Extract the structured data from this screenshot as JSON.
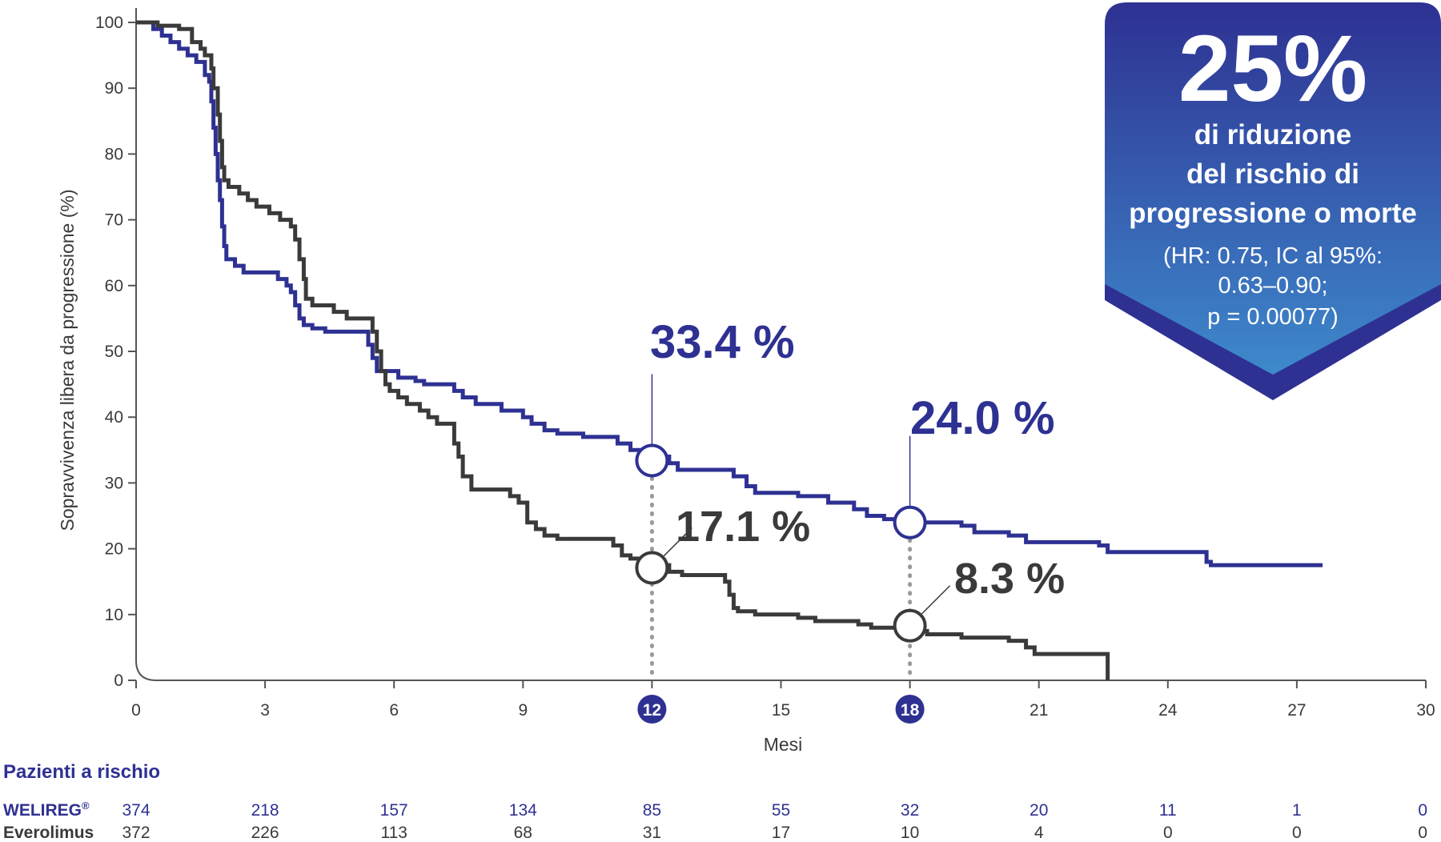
{
  "chart_data": {
    "type": "line",
    "subtype": "kaplan-meier",
    "xlabel": "Mesi",
    "ylabel": "Sopravvivenza libera da progressione (%)",
    "xlim": [
      0,
      30
    ],
    "ylim": [
      0,
      100
    ],
    "xticks": [
      "0",
      "3",
      "6",
      "9",
      "12",
      "15",
      "18",
      "21",
      "24",
      "27",
      "30"
    ],
    "yticks": [
      "0",
      "10",
      "20",
      "30",
      "40",
      "50",
      "60",
      "70",
      "80",
      "90",
      "100"
    ],
    "highlighted_xticks": [
      "12",
      "18"
    ],
    "grid": false,
    "series": [
      {
        "name": "WELIREG®",
        "color": "#2e3192",
        "steps": [
          [
            0,
            100
          ],
          [
            0.4,
            99
          ],
          [
            0.6,
            98
          ],
          [
            0.8,
            97
          ],
          [
            1.0,
            96
          ],
          [
            1.2,
            95
          ],
          [
            1.4,
            94
          ],
          [
            1.6,
            92
          ],
          [
            1.7,
            91
          ],
          [
            1.75,
            88
          ],
          [
            1.8,
            84
          ],
          [
            1.85,
            80
          ],
          [
            1.9,
            76
          ],
          [
            1.95,
            73
          ],
          [
            2.0,
            69
          ],
          [
            2.05,
            66
          ],
          [
            2.1,
            64
          ],
          [
            2.3,
            63
          ],
          [
            2.5,
            62
          ],
          [
            3.3,
            61
          ],
          [
            3.5,
            60
          ],
          [
            3.6,
            59
          ],
          [
            3.7,
            57
          ],
          [
            3.8,
            55
          ],
          [
            3.9,
            54
          ],
          [
            4.1,
            53.5
          ],
          [
            4.4,
            53
          ],
          [
            5.4,
            51
          ],
          [
            5.5,
            49
          ],
          [
            5.6,
            47
          ],
          [
            6.1,
            46
          ],
          [
            6.5,
            45.5
          ],
          [
            6.7,
            45
          ],
          [
            7.4,
            44
          ],
          [
            7.6,
            43
          ],
          [
            7.9,
            42
          ],
          [
            8.5,
            41
          ],
          [
            9.0,
            40
          ],
          [
            9.2,
            39
          ],
          [
            9.5,
            38
          ],
          [
            9.8,
            37.5
          ],
          [
            10.4,
            37
          ],
          [
            11.2,
            36
          ],
          [
            11.5,
            35
          ],
          [
            11.8,
            34
          ],
          [
            12.4,
            33
          ],
          [
            12.6,
            32
          ],
          [
            13.9,
            31
          ],
          [
            14.2,
            29.5
          ],
          [
            14.4,
            28.5
          ],
          [
            15.4,
            28
          ],
          [
            16.1,
            27
          ],
          [
            16.7,
            26
          ],
          [
            17.0,
            25
          ],
          [
            17.4,
            24.5
          ],
          [
            17.8,
            24
          ],
          [
            19.2,
            23.5
          ],
          [
            19.5,
            22.5
          ],
          [
            20.3,
            22
          ],
          [
            20.7,
            21
          ],
          [
            22.4,
            20.5
          ],
          [
            22.6,
            19.5
          ],
          [
            24.9,
            18
          ],
          [
            25.0,
            17.5
          ],
          [
            27.6,
            17.5
          ]
        ]
      },
      {
        "name": "Everolimus",
        "color": "#3a3a3a",
        "steps": [
          [
            0,
            100
          ],
          [
            0.5,
            99.5
          ],
          [
            1.0,
            99
          ],
          [
            1.3,
            97
          ],
          [
            1.5,
            96
          ],
          [
            1.6,
            95
          ],
          [
            1.75,
            93
          ],
          [
            1.8,
            90
          ],
          [
            1.9,
            86
          ],
          [
            1.95,
            82
          ],
          [
            2.0,
            78
          ],
          [
            2.05,
            76
          ],
          [
            2.15,
            75
          ],
          [
            2.4,
            74
          ],
          [
            2.6,
            73
          ],
          [
            2.8,
            72
          ],
          [
            3.1,
            71
          ],
          [
            3.35,
            70
          ],
          [
            3.6,
            69
          ],
          [
            3.7,
            67
          ],
          [
            3.8,
            64
          ],
          [
            3.9,
            61
          ],
          [
            3.95,
            58
          ],
          [
            4.1,
            57
          ],
          [
            4.6,
            56
          ],
          [
            4.9,
            55
          ],
          [
            5.5,
            53
          ],
          [
            5.6,
            50
          ],
          [
            5.7,
            47
          ],
          [
            5.8,
            45
          ],
          [
            5.9,
            44
          ],
          [
            6.1,
            43
          ],
          [
            6.3,
            42
          ],
          [
            6.6,
            41
          ],
          [
            6.8,
            40
          ],
          [
            7.0,
            39
          ],
          [
            7.4,
            36
          ],
          [
            7.5,
            34
          ],
          [
            7.6,
            31
          ],
          [
            7.8,
            29
          ],
          [
            8.7,
            28
          ],
          [
            8.9,
            27
          ],
          [
            9.1,
            24
          ],
          [
            9.3,
            23
          ],
          [
            9.5,
            22
          ],
          [
            9.8,
            21.5
          ],
          [
            11.1,
            20.5
          ],
          [
            11.3,
            19
          ],
          [
            11.5,
            18.5
          ],
          [
            11.8,
            17.5
          ],
          [
            12.4,
            16.5
          ],
          [
            12.7,
            16
          ],
          [
            13.7,
            15
          ],
          [
            13.8,
            13
          ],
          [
            13.9,
            11
          ],
          [
            14.0,
            10.5
          ],
          [
            14.4,
            10
          ],
          [
            15.4,
            9.5
          ],
          [
            15.8,
            9
          ],
          [
            16.8,
            8.5
          ],
          [
            17.1,
            8
          ],
          [
            17.8,
            7.5
          ],
          [
            18.4,
            7
          ],
          [
            19.2,
            6.5
          ],
          [
            20.3,
            6
          ],
          [
            20.7,
            5
          ],
          [
            20.9,
            4
          ],
          [
            22.6,
            4
          ],
          [
            22.6,
            0
          ]
        ]
      }
    ],
    "annotations": [
      {
        "series": "WELIREG®",
        "x": 12,
        "y": 33.4,
        "label": "33.4 %"
      },
      {
        "series": "WELIREG®",
        "x": 18,
        "y": 24.0,
        "label": "24.0 %"
      },
      {
        "series": "Everolimus",
        "x": 12,
        "y": 17.1,
        "label": "17.1 %"
      },
      {
        "series": "Everolimus",
        "x": 18,
        "y": 8.3,
        "label": "8.3 %"
      }
    ],
    "risk_table": {
      "title": "Pazienti a rischio",
      "times": [
        0,
        3,
        6,
        9,
        12,
        15,
        18,
        21,
        24,
        27,
        30
      ],
      "rows": [
        {
          "label": "WELIREG",
          "superscript": "®",
          "values": [
            "374",
            "218",
            "157",
            "134",
            "85",
            "55",
            "32",
            "20",
            "11",
            "1",
            "0"
          ]
        },
        {
          "label": "Everolimus",
          "values": [
            "372",
            "226",
            "113",
            "68",
            "31",
            "17",
            "10",
            "4",
            "0",
            "0",
            "0"
          ]
        }
      ]
    }
  },
  "badge": {
    "headline": "25%",
    "lines": [
      "di riduzione",
      "del rischio di",
      "progressione o morte"
    ],
    "sublines": [
      "(HR: 0.75, IC al 95%:",
      "0.63–0.90;",
      "p = 0.00077)"
    ]
  },
  "colors": {
    "welireg": "#2e3192",
    "everolimus": "#3a3a3a",
    "badge_top": "#2e3192",
    "badge_bottom": "#3f8fd0"
  }
}
